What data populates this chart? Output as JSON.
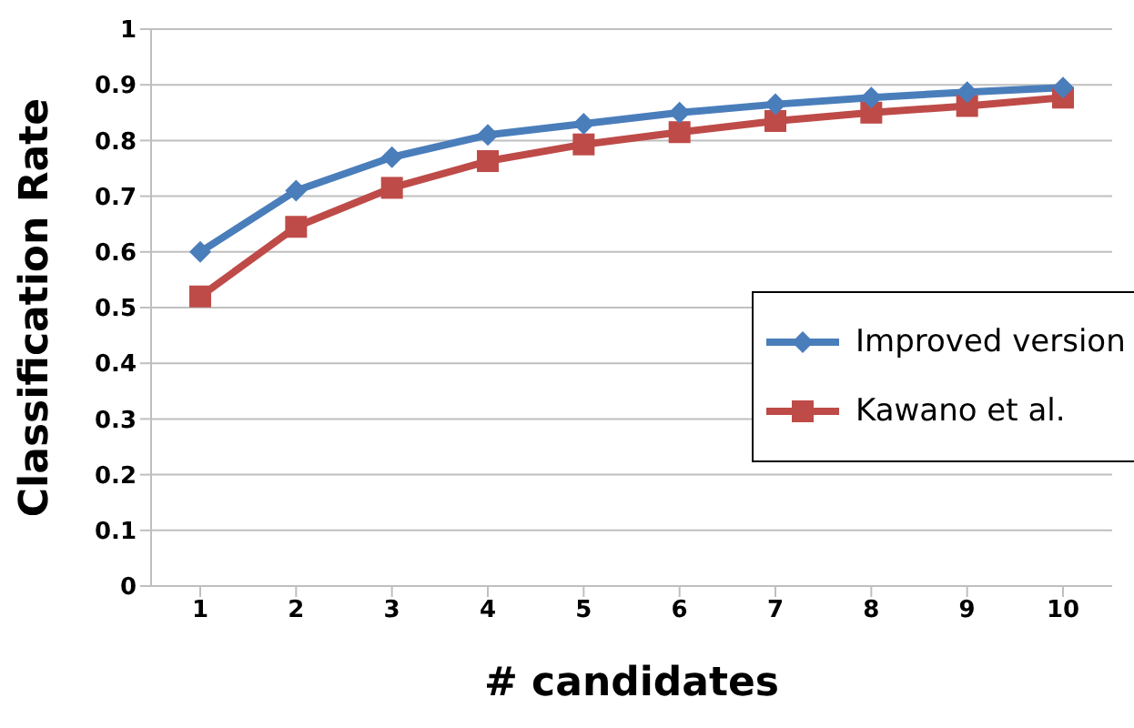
{
  "chart_data": {
    "type": "line",
    "xlabel": "# candidates",
    "ylabel": "Classification Rate",
    "categories": [
      "1",
      "2",
      "3",
      "4",
      "5",
      "6",
      "7",
      "8",
      "9",
      "10"
    ],
    "series": [
      {
        "name": "Improved version",
        "color": "#4a7ebb",
        "marker": "diamond",
        "values": [
          0.6,
          0.71,
          0.77,
          0.81,
          0.83,
          0.85,
          0.865,
          0.877,
          0.887,
          0.895
        ]
      },
      {
        "name": "Kawano et al.",
        "color": "#be4b48",
        "marker": "square",
        "values": [
          0.52,
          0.645,
          0.715,
          0.763,
          0.793,
          0.815,
          0.835,
          0.85,
          0.862,
          0.877
        ]
      }
    ],
    "ylim": [
      0,
      1
    ],
    "yticks": [
      0,
      0.1,
      0.2,
      0.3,
      0.4,
      0.5,
      0.6,
      0.7,
      0.8,
      0.9,
      1
    ],
    "grid": "y",
    "legend": "right",
    "line_style": "solid"
  }
}
